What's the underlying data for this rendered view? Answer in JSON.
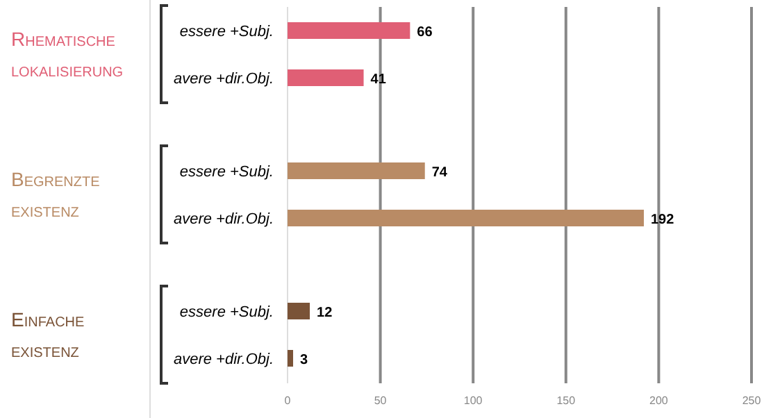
{
  "chart_data": {
    "type": "bar",
    "orientation": "horizontal",
    "categories": [
      "essere +Subj.",
      "avere +dir.Obj.",
      "essere +Subj.",
      "avere +dir.Obj.",
      "essere +Subj.",
      "avere +dir.Obj."
    ],
    "values": [
      66,
      41,
      74,
      192,
      12,
      3
    ],
    "colors": [
      "#e05f75",
      "#e05f75",
      "#b98b65",
      "#b98b65",
      "#7a5337",
      "#7a5337"
    ],
    "xlim": [
      0,
      250
    ],
    "xticks": [
      0,
      50,
      100,
      150,
      200,
      250
    ],
    "grid": "x",
    "data_labels": true,
    "annotations": [
      "Rhematische lokalisierung",
      "Begrenzte existenz",
      "Einfache existenz"
    ]
  }
}
